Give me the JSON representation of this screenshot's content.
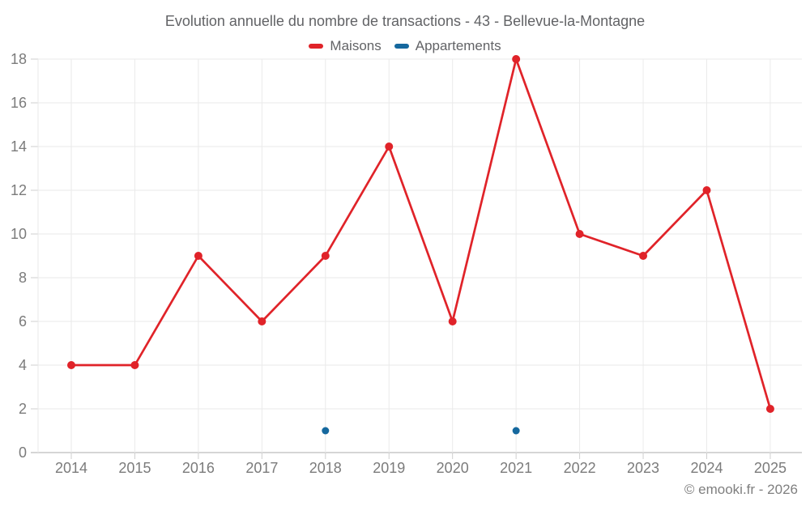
{
  "footer": "© emooki.fr - 2026",
  "chart_data": {
    "type": "line",
    "title": "Evolution annuelle du nombre de transactions - 43 - Bellevue-la-Montagne",
    "categories": [
      "2014",
      "2015",
      "2016",
      "2017",
      "2018",
      "2019",
      "2020",
      "2021",
      "2022",
      "2023",
      "2024",
      "2025"
    ],
    "series": [
      {
        "name": "Maisons",
        "color": "#e02329",
        "values": [
          4,
          4,
          9,
          6,
          9,
          14,
          6,
          18,
          10,
          9,
          12,
          2
        ]
      },
      {
        "name": "Appartements",
        "color": "#15689e",
        "values": [
          null,
          null,
          null,
          null,
          1,
          null,
          null,
          1,
          null,
          null,
          null,
          null
        ]
      }
    ],
    "ylim": [
      0,
      18
    ],
    "yticks": [
      0,
      2,
      4,
      6,
      8,
      10,
      12,
      14,
      16,
      18
    ],
    "xlabel": "",
    "ylabel": "",
    "grid": true,
    "legend_position": "top",
    "colors": {
      "axis_line": "#ababab",
      "grid_line": "#eaeaea",
      "tick_mark": "#cfcfcf",
      "tick_label": "#7b7b7b"
    }
  }
}
